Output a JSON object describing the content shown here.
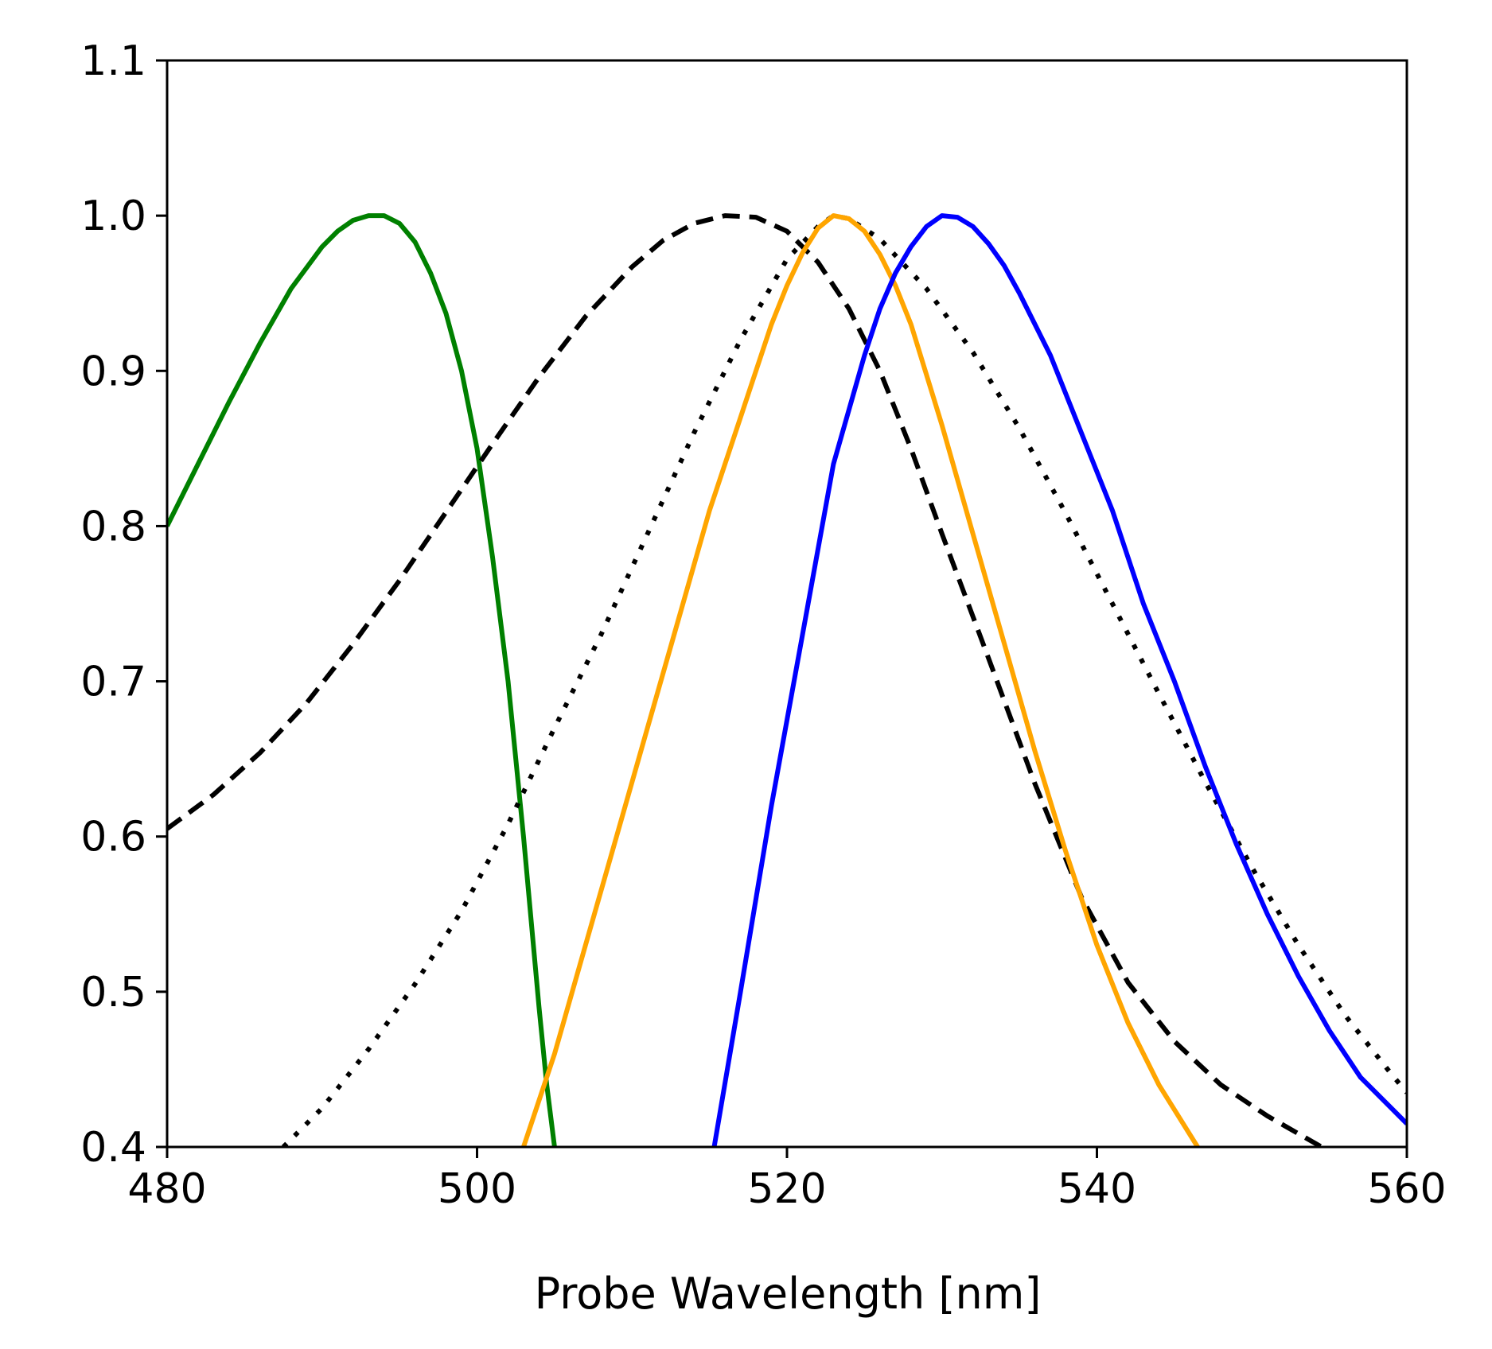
{
  "chart_data": {
    "type": "line",
    "title": "",
    "xlabel": "Probe Wavelength [nm]",
    "ylabel": "",
    "xlim": [
      480,
      560
    ],
    "ylim": [
      0.4,
      1.1
    ],
    "xticks": [
      "480",
      "500",
      "520",
      "540",
      "560"
    ],
    "yticks": [
      "0.4",
      "0.5",
      "0.6",
      "0.7",
      "0.8",
      "0.9",
      "1.0",
      "1.1"
    ],
    "grid": false,
    "legend": "none",
    "series": [
      {
        "color": "#008000",
        "style": "solid",
        "x": [
          480,
          482,
          484,
          486,
          488,
          490,
          491,
          492,
          493,
          494,
          495,
          496,
          497,
          498,
          499,
          500,
          501,
          502,
          503,
          504,
          504.5,
          505
        ],
        "y": [
          0.8,
          0.84,
          0.88,
          0.918,
          0.953,
          0.98,
          0.99,
          0.997,
          1.0,
          1.0,
          0.995,
          0.983,
          0.963,
          0.937,
          0.9,
          0.85,
          0.78,
          0.7,
          0.6,
          0.49,
          0.44,
          0.4
        ]
      },
      {
        "color": "#000000",
        "style": "dashed",
        "x": [
          480,
          483,
          486,
          489,
          492,
          495,
          498,
          501,
          504,
          507,
          510,
          512,
          514,
          516,
          518,
          520,
          522,
          524,
          526,
          528,
          530,
          533,
          536,
          539,
          542,
          545,
          548,
          551,
          554.5
        ],
        "y": [
          0.605,
          0.627,
          0.654,
          0.686,
          0.724,
          0.765,
          0.809,
          0.853,
          0.896,
          0.935,
          0.967,
          0.984,
          0.995,
          1.0,
          0.999,
          0.99,
          0.97,
          0.94,
          0.9,
          0.85,
          0.795,
          0.715,
          0.634,
          0.561,
          0.506,
          0.468,
          0.44,
          0.42,
          0.4
        ]
      },
      {
        "color": "#000000",
        "style": "dotted",
        "x": [
          487.5,
          490,
          493,
          496,
          499,
          502,
          505,
          508,
          511,
          514,
          517,
          520,
          522,
          523,
          524,
          526,
          529,
          532,
          535,
          538,
          541,
          544,
          547,
          550,
          553,
          556,
          559,
          560
        ],
        "y": [
          0.4,
          0.425,
          0.463,
          0.505,
          0.552,
          0.608,
          0.67,
          0.73,
          0.795,
          0.86,
          0.92,
          0.972,
          0.993,
          1.0,
          0.998,
          0.985,
          0.953,
          0.912,
          0.863,
          0.808,
          0.75,
          0.692,
          0.635,
          0.58,
          0.53,
          0.485,
          0.447,
          0.435
        ]
      },
      {
        "color": "#FFA500",
        "style": "solid",
        "x": [
          503,
          505,
          507,
          509,
          511,
          513,
          515,
          517,
          518,
          519,
          520,
          521,
          522,
          523,
          524,
          525,
          526,
          527,
          528,
          530,
          532,
          534,
          536,
          538,
          540,
          542,
          544,
          546.5
        ],
        "y": [
          0.4,
          0.46,
          0.53,
          0.6,
          0.67,
          0.74,
          0.81,
          0.87,
          0.9,
          0.93,
          0.955,
          0.976,
          0.992,
          1.0,
          0.998,
          0.99,
          0.975,
          0.955,
          0.93,
          0.865,
          0.795,
          0.725,
          0.655,
          0.59,
          0.53,
          0.48,
          0.44,
          0.4
        ]
      },
      {
        "color": "#0000FF",
        "style": "solid",
        "x": [
          515.3,
          517,
          519,
          521,
          523,
          525,
          526,
          527,
          528,
          529,
          530,
          531,
          532,
          533,
          534,
          535,
          537,
          539,
          541,
          543,
          545,
          547,
          549,
          551,
          553,
          555,
          557,
          560
        ],
        "y": [
          0.4,
          0.5,
          0.62,
          0.73,
          0.84,
          0.91,
          0.94,
          0.963,
          0.98,
          0.993,
          1.0,
          0.999,
          0.993,
          0.982,
          0.968,
          0.95,
          0.91,
          0.86,
          0.81,
          0.75,
          0.7,
          0.645,
          0.595,
          0.55,
          0.51,
          0.475,
          0.445,
          0.415
        ]
      }
    ]
  }
}
